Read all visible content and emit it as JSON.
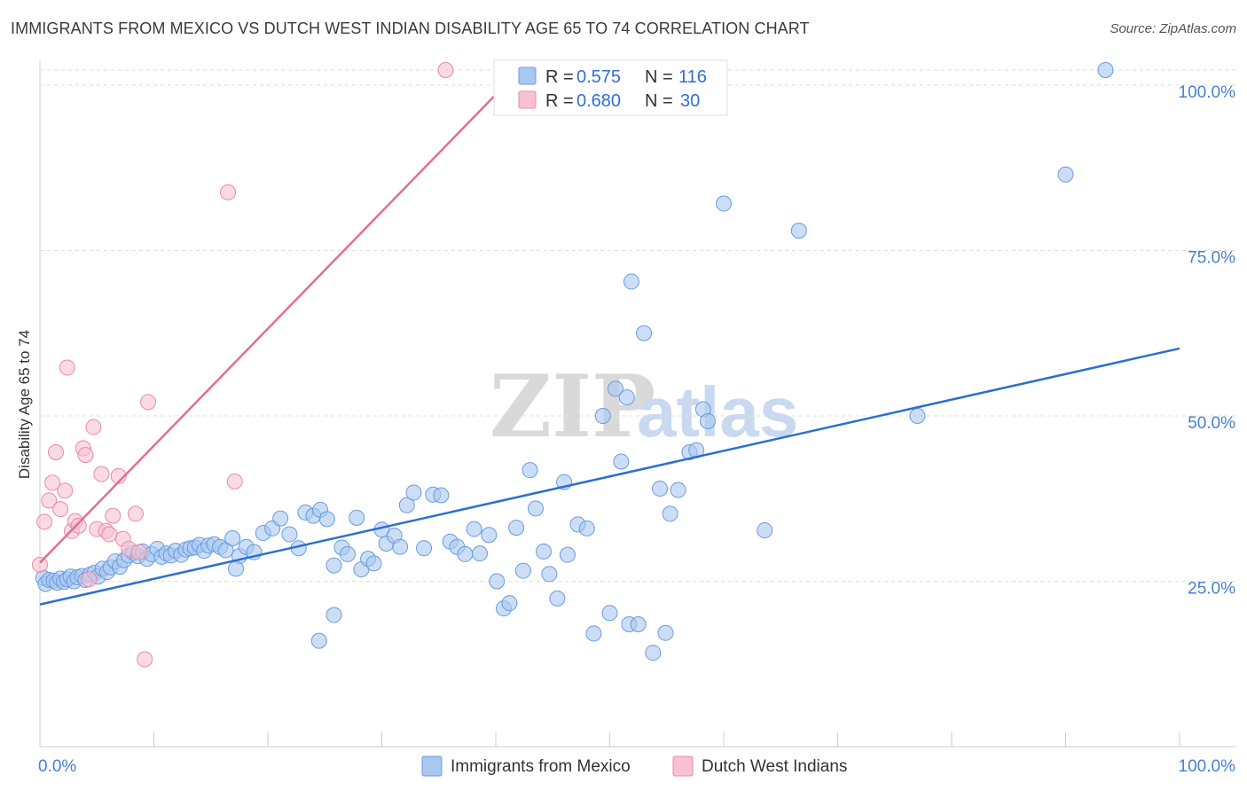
{
  "title": "IMMIGRANTS FROM MEXICO VS DUTCH WEST INDIAN DISABILITY AGE 65 TO 74 CORRELATION CHART",
  "source": "Source: ZipAtlas.com",
  "watermark": {
    "zip": "ZIP",
    "atlas": "atlas"
  },
  "colors": {
    "blue_fill": "#a9c8f0",
    "blue_stroke": "#6a9be0",
    "blue_line": "#2d6fd0",
    "pink_fill": "#f7c1d0",
    "pink_stroke": "#e98aa8",
    "pink_line": "#e36d95",
    "grid": "#dddddd",
    "tick_text": "#4a7fd0"
  },
  "legend": {
    "rows": [
      {
        "r_label": "R =",
        "r_value": "0.575",
        "n_label": "N =",
        "n_value": "116"
      },
      {
        "r_label": "R =",
        "r_value": "0.680",
        "n_label": "N =",
        "n_value": "30"
      }
    ]
  },
  "chart_data": {
    "type": "scatter",
    "title": "IMMIGRANTS FROM MEXICO VS DUTCH WEST INDIAN DISABILITY AGE 65 TO 74 CORRELATION CHART",
    "xlabel": "",
    "ylabel": "Disability Age 65 to 74",
    "xlim": [
      0,
      100
    ],
    "ylim": [
      0,
      100
    ],
    "x_tick_labels": [
      "0.0%",
      "100.0%"
    ],
    "y_ticks": [
      25,
      50,
      75,
      100
    ],
    "y_tick_labels": [
      "25.0%",
      "50.0%",
      "75.0%",
      "100.0%"
    ],
    "grid": true,
    "legend_position": "top-center",
    "series": [
      {
        "name": "Immigrants from Mexico",
        "color": "#a9c8f0",
        "r": 0.575,
        "n": 116,
        "trend": {
          "x": [
            0,
            100
          ],
          "y": [
            21.5,
            60.2
          ]
        },
        "points": [
          [
            0.3,
            25.5
          ],
          [
            0.5,
            24.6
          ],
          [
            0.8,
            25.2
          ],
          [
            1.2,
            25.1
          ],
          [
            1.5,
            24.8
          ],
          [
            1.8,
            25.4
          ],
          [
            2.1,
            24.9
          ],
          [
            2.4,
            25.3
          ],
          [
            2.7,
            25.7
          ],
          [
            3.0,
            25.0
          ],
          [
            3.3,
            25.6
          ],
          [
            3.7,
            25.8
          ],
          [
            4.0,
            25.2
          ],
          [
            4.4,
            26.0
          ],
          [
            4.8,
            26.3
          ],
          [
            5.1,
            25.7
          ],
          [
            5.5,
            26.9
          ],
          [
            5.9,
            26.4
          ],
          [
            6.2,
            27.1
          ],
          [
            6.6,
            28.0
          ],
          [
            7.0,
            27.2
          ],
          [
            7.4,
            28.2
          ],
          [
            7.8,
            28.9
          ],
          [
            8.2,
            29.3
          ],
          [
            8.6,
            28.8
          ],
          [
            9.0,
            29.5
          ],
          [
            9.4,
            28.4
          ],
          [
            9.8,
            29.1
          ],
          [
            10.3,
            29.9
          ],
          [
            10.7,
            28.7
          ],
          [
            11.1,
            29.2
          ],
          [
            11.5,
            28.9
          ],
          [
            11.9,
            29.6
          ],
          [
            12.4,
            29.0
          ],
          [
            12.8,
            29.8
          ],
          [
            13.2,
            30.0
          ],
          [
            13.6,
            30.1
          ],
          [
            14.0,
            30.5
          ],
          [
            14.4,
            29.6
          ],
          [
            14.8,
            30.4
          ],
          [
            15.3,
            30.6
          ],
          [
            15.8,
            30.2
          ],
          [
            16.3,
            29.7
          ],
          [
            16.9,
            31.5
          ],
          [
            17.5,
            28.8
          ],
          [
            18.1,
            30.2
          ],
          [
            18.8,
            29.4
          ],
          [
            19.6,
            32.3
          ],
          [
            20.4,
            33.0
          ],
          [
            21.1,
            34.5
          ],
          [
            21.9,
            32.1
          ],
          [
            22.7,
            30.0
          ],
          [
            23.3,
            35.4
          ],
          [
            24.0,
            34.9
          ],
          [
            24.6,
            35.8
          ],
          [
            25.2,
            34.4
          ],
          [
            25.8,
            27.4
          ],
          [
            26.5,
            30.1
          ],
          [
            27.0,
            29.1
          ],
          [
            27.8,
            34.6
          ],
          [
            28.2,
            26.8
          ],
          [
            28.8,
            28.4
          ],
          [
            29.3,
            27.7
          ],
          [
            30.0,
            32.8
          ],
          [
            30.4,
            30.7
          ],
          [
            31.1,
            31.9
          ],
          [
            31.6,
            30.2
          ],
          [
            32.2,
            36.5
          ],
          [
            32.8,
            38.4
          ],
          [
            33.7,
            30.0
          ],
          [
            34.5,
            38.1
          ],
          [
            35.2,
            38.0
          ],
          [
            36.0,
            31.0
          ],
          [
            36.6,
            30.2
          ],
          [
            37.3,
            29.1
          ],
          [
            38.1,
            32.9
          ],
          [
            38.6,
            29.2
          ],
          [
            39.4,
            32.0
          ],
          [
            40.1,
            25.0
          ],
          [
            40.7,
            20.9
          ],
          [
            41.2,
            21.7
          ],
          [
            41.8,
            33.1
          ],
          [
            42.4,
            26.6
          ],
          [
            43.0,
            41.8
          ],
          [
            43.5,
            36.0
          ],
          [
            44.2,
            29.5
          ],
          [
            44.7,
            26.1
          ],
          [
            45.4,
            22.4
          ],
          [
            46.0,
            40.0
          ],
          [
            46.3,
            29.0
          ],
          [
            47.2,
            33.6
          ],
          [
            48.0,
            33.0
          ],
          [
            48.6,
            17.1
          ],
          [
            49.4,
            50.0
          ],
          [
            50.0,
            20.2
          ],
          [
            50.5,
            54.1
          ],
          [
            51.0,
            43.1
          ],
          [
            51.5,
            52.8
          ],
          [
            51.9,
            70.3
          ],
          [
            51.7,
            18.5
          ],
          [
            52.5,
            18.5
          ],
          [
            53.0,
            62.5
          ],
          [
            53.8,
            14.2
          ],
          [
            54.4,
            39.0
          ],
          [
            54.9,
            17.2
          ],
          [
            55.3,
            35.2
          ],
          [
            56.0,
            38.8
          ],
          [
            57.0,
            44.5
          ],
          [
            57.6,
            44.8
          ],
          [
            58.2,
            51.0
          ],
          [
            58.6,
            49.2
          ],
          [
            60.0,
            82.1
          ],
          [
            63.6,
            32.7
          ],
          [
            66.6,
            78.0
          ],
          [
            77.0,
            50.0
          ],
          [
            90.0,
            86.5
          ],
          [
            93.5,
            104.5
          ],
          [
            25.8,
            19.9
          ],
          [
            24.5,
            16.0
          ],
          [
            17.2,
            26.9
          ]
        ]
      },
      {
        "name": "Dutch West Indians",
        "color": "#f7c1d0",
        "r": 0.68,
        "n": 30,
        "trend": {
          "x": [
            0,
            40.2
          ],
          "y": [
            27.8,
            100
          ]
        },
        "points": [
          [
            0.0,
            27.5
          ],
          [
            0.4,
            34.0
          ],
          [
            0.8,
            37.2
          ],
          [
            1.1,
            39.9
          ],
          [
            1.4,
            44.5
          ],
          [
            1.8,
            35.9
          ],
          [
            2.2,
            38.7
          ],
          [
            2.4,
            57.3
          ],
          [
            2.8,
            32.6
          ],
          [
            3.1,
            34.1
          ],
          [
            3.4,
            33.4
          ],
          [
            3.8,
            45.1
          ],
          [
            4.0,
            44.1
          ],
          [
            4.3,
            25.3
          ],
          [
            4.7,
            48.3
          ],
          [
            5.0,
            32.9
          ],
          [
            5.4,
            41.2
          ],
          [
            5.8,
            32.6
          ],
          [
            6.1,
            32.1
          ],
          [
            6.4,
            34.9
          ],
          [
            6.9,
            40.9
          ],
          [
            7.3,
            31.4
          ],
          [
            7.8,
            29.9
          ],
          [
            8.4,
            35.2
          ],
          [
            8.7,
            29.4
          ],
          [
            9.2,
            13.2
          ],
          [
            9.5,
            52.1
          ],
          [
            16.5,
            83.8
          ],
          [
            17.1,
            40.1
          ],
          [
            35.6,
            104.3
          ]
        ]
      }
    ]
  }
}
